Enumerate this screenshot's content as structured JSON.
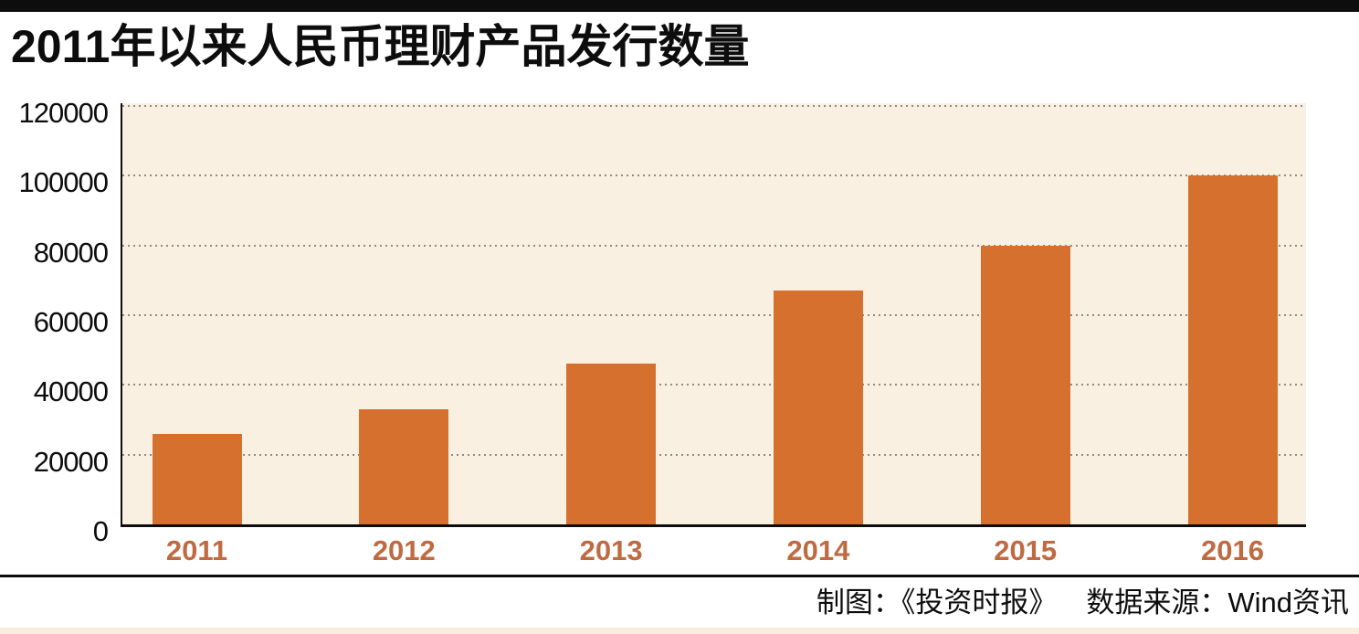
{
  "page": {
    "title": "2011年以来人民币理财产品发行数量",
    "footer": {
      "credit": "制图：《投资时报》",
      "source": "数据来源：Wind资讯"
    }
  },
  "colors": {
    "ink": "#0d0d0d",
    "bar": "#d5702f",
    "plot_bg": "#faf0e2",
    "grid": "#93897d",
    "x_label": "#c06a42",
    "footer_strip": "#fbeede"
  },
  "chart_data": {
    "type": "bar",
    "title": "2011年以来人民币理财产品发行数量",
    "categories": [
      "2011",
      "2012",
      "2013",
      "2014",
      "2015",
      "2016"
    ],
    "values": [
      26000,
      33000,
      46000,
      67000,
      80000,
      100000
    ],
    "xlabel": "",
    "ylabel": "",
    "ylim": [
      0,
      120000
    ],
    "yticks": [
      0,
      20000,
      40000,
      60000,
      80000,
      100000,
      120000
    ],
    "grid": "horizontal-dotted",
    "legend": "none",
    "bar_color": "#d5702f",
    "plot_background": "#faf0e2"
  }
}
